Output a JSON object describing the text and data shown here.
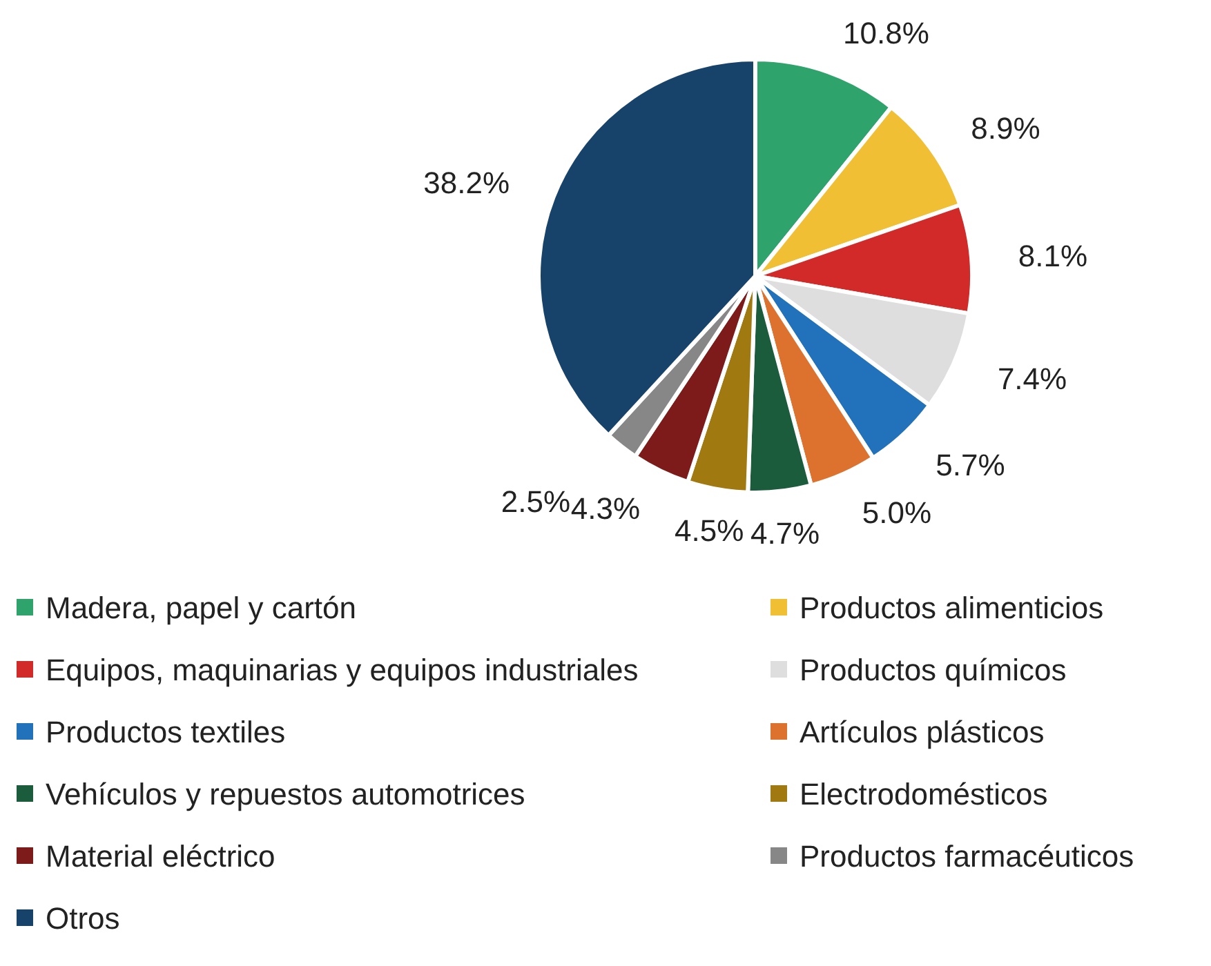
{
  "chart_data": {
    "type": "pie",
    "categories": [
      "Madera, papel y cartón",
      "Productos alimenticios",
      "Equipos, maquinarias y equipos industriales",
      "Productos químicos",
      "Productos textiles",
      "Artículos plásticos",
      "Vehículos y repuestos automotrices",
      "Electrodomésticos",
      "Material eléctrico",
      "Productos farmacéuticos",
      "Otros"
    ],
    "values": [
      10.8,
      8.9,
      8.1,
      7.4,
      5.7,
      5.0,
      4.7,
      4.5,
      4.3,
      2.5,
      38.2
    ],
    "value_labels": [
      "10.8%",
      "8.9%",
      "8.1%",
      "7.4%",
      "5.7%",
      "5.0%",
      "4.7%",
      "4.5%",
      "4.3%",
      "2.5%",
      "38.2%"
    ],
    "colors": [
      "#2ea36b",
      "#f0bf33",
      "#d12a29",
      "#dedede",
      "#2272bb",
      "#dc722e",
      "#1b5c3d",
      "#a07a10",
      "#7d1a1a",
      "#878787",
      "#17436b"
    ],
    "legend": "bottom"
  }
}
